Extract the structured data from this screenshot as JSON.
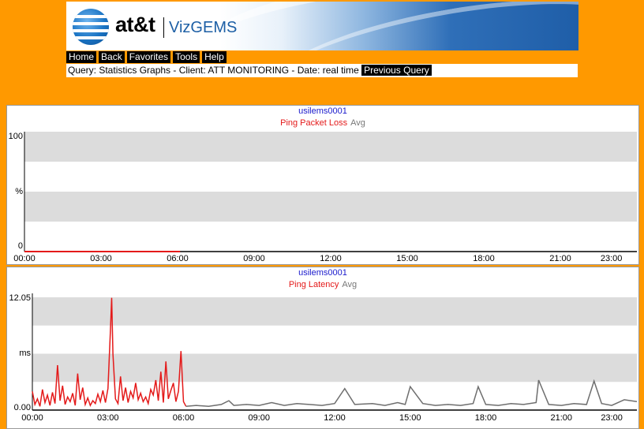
{
  "header": {
    "brand": "at&t",
    "product": "VizGEMS"
  },
  "menu": [
    "Home",
    "Back",
    "Favorites",
    "Tools",
    "Help"
  ],
  "query": {
    "text": "Query: Statistics Graphs - Client: ATT MONITORING - Date: real time",
    "button": "Previous Query"
  },
  "charts": [
    {
      "host": "usilems0001",
      "metric": "Ping Packet Loss",
      "avg_label": "Avg",
      "y_labels": [
        "100",
        "%",
        "0"
      ],
      "x_labels": [
        "00:00",
        "03:00",
        "06:00",
        "09:00",
        "12:00",
        "15:00",
        "18:00",
        "21:00",
        "23:00"
      ]
    },
    {
      "host": "usilems0001",
      "metric": "Ping Latency",
      "avg_label": "Avg",
      "y_labels": [
        "12.05",
        "ms",
        "0.00"
      ],
      "x_labels": [
        "00:00",
        "03:00",
        "06:00",
        "09:00",
        "12:00",
        "15:00",
        "18:00",
        "21:00",
        "23:00"
      ]
    }
  ],
  "colors": {
    "metric": "#e41a1a",
    "avg": "#6e6e6e",
    "host": "#1a1acc",
    "band": "#dcdcdc"
  },
  "chart_data": [
    {
      "type": "line",
      "title": "Ping Packet Loss",
      "ylabel": "%",
      "ylim": [
        0,
        100
      ],
      "xlim": [
        0,
        24
      ],
      "grid": true,
      "series": [
        {
          "name": "Ping Packet Loss",
          "x": [
            0,
            1,
            2,
            3,
            4,
            5,
            6.1
          ],
          "y": [
            0,
            0,
            0,
            0,
            0,
            0,
            0
          ]
        }
      ]
    },
    {
      "type": "line",
      "title": "Ping Latency",
      "ylabel": "ms",
      "ylim": [
        0,
        12.05
      ],
      "xlim": [
        0,
        24
      ],
      "grid": true,
      "series": [
        {
          "name": "Ping Latency",
          "x": [
            0,
            0.1,
            0.2,
            0.3,
            0.4,
            0.5,
            0.6,
            0.7,
            0.8,
            0.9,
            1.0,
            1.1,
            1.2,
            1.3,
            1.4,
            1.5,
            1.6,
            1.7,
            1.8,
            1.9,
            2.0,
            2.1,
            2.2,
            2.3,
            2.4,
            2.5,
            2.6,
            2.7,
            2.8,
            2.9,
            3.0,
            3.1,
            3.15,
            3.2,
            3.3,
            3.4,
            3.5,
            3.6,
            3.7,
            3.8,
            3.9,
            4.0,
            4.1,
            4.2,
            4.3,
            4.4,
            4.5,
            4.6,
            4.7,
            4.8,
            4.9,
            5.0,
            5.1,
            5.2,
            5.3,
            5.4,
            5.5,
            5.6,
            5.7,
            5.8,
            5.9,
            6.0,
            6.1
          ],
          "y": [
            2.0,
            0.6,
            1.2,
            0.4,
            2.2,
            0.8,
            1.6,
            0.5,
            1.9,
            0.7,
            4.8,
            1.0,
            2.6,
            0.6,
            1.4,
            0.9,
            1.8,
            0.5,
            3.9,
            1.1,
            2.4,
            0.6,
            1.3,
            0.5,
            1.0,
            0.7,
            1.7,
            0.9,
            2.1,
            0.8,
            2.3,
            8.5,
            12.0,
            6.0,
            1.2,
            0.7,
            3.6,
            1.0,
            2.4,
            0.8,
            2.0,
            1.3,
            2.9,
            1.1,
            1.8,
            0.9,
            1.4,
            0.7,
            2.2,
            1.6,
            3.2,
            1.0,
            4.1,
            0.8,
            5.2,
            1.2,
            2.1,
            2.9,
            0.9,
            2.0,
            6.3,
            0.9,
            0.4
          ]
        },
        {
          "name": "Avg",
          "x": [
            6.1,
            6.5,
            7.0,
            7.5,
            7.8,
            8.0,
            8.5,
            9.0,
            9.5,
            10.0,
            10.5,
            11.0,
            11.5,
            12.0,
            12.4,
            12.8,
            13.5,
            14.0,
            14.5,
            14.8,
            15.0,
            15.5,
            16.0,
            16.5,
            17.0,
            17.5,
            17.7,
            18.0,
            18.5,
            19.0,
            19.5,
            20.0,
            20.1,
            20.5,
            21.0,
            21.5,
            22.0,
            22.3,
            22.6,
            23.0,
            23.5,
            24.0
          ],
          "y": [
            0.4,
            0.5,
            0.4,
            0.6,
            1.0,
            0.5,
            0.6,
            0.5,
            0.8,
            0.5,
            0.7,
            0.6,
            0.5,
            0.7,
            2.3,
            0.6,
            0.7,
            0.5,
            0.8,
            0.6,
            2.5,
            0.7,
            0.5,
            0.6,
            0.5,
            0.7,
            2.5,
            0.6,
            0.5,
            0.7,
            0.6,
            0.8,
            3.2,
            0.6,
            0.5,
            0.7,
            0.6,
            3.1,
            0.7,
            0.5,
            1.1,
            0.9
          ]
        }
      ]
    }
  ]
}
